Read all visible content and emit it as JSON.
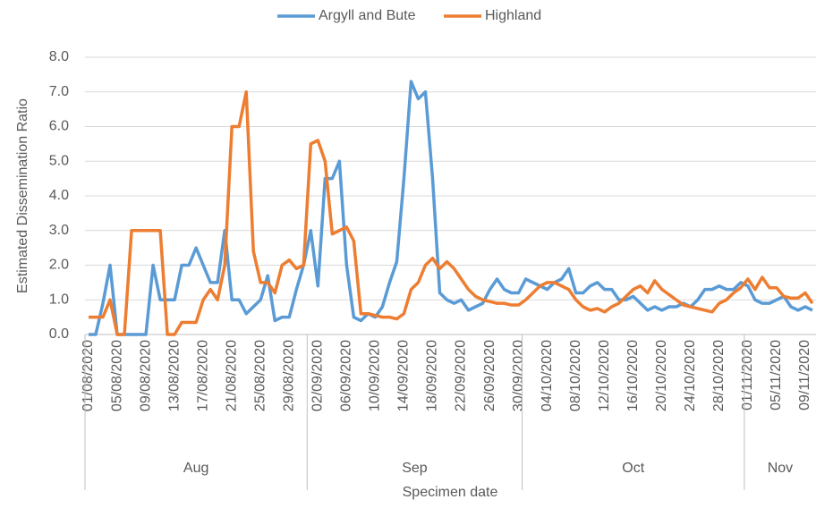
{
  "chart_data": {
    "type": "line",
    "x_label": "Specimen date",
    "y_label": "Estimated Dissemination Ratio",
    "categories": [
      "01/08/2020",
      null,
      null,
      null,
      "05/08/2020",
      null,
      null,
      null,
      "09/08/2020",
      null,
      null,
      null,
      "13/08/2020",
      null,
      null,
      null,
      "17/08/2020",
      null,
      null,
      null,
      "21/08/2020",
      null,
      null,
      null,
      "25/08/2020",
      null,
      null,
      null,
      "29/08/2020",
      null,
      null,
      null,
      "02/09/2020",
      null,
      null,
      null,
      "06/09/2020",
      null,
      null,
      null,
      "10/09/2020",
      null,
      null,
      null,
      "14/09/2020",
      null,
      null,
      null,
      "18/09/2020",
      null,
      null,
      null,
      "22/09/2020",
      null,
      null,
      null,
      "26/09/2020",
      null,
      null,
      null,
      "30/09/2020",
      null,
      null,
      null,
      "04/10/2020",
      null,
      null,
      null,
      "08/10/2020",
      null,
      null,
      null,
      "12/10/2020",
      null,
      null,
      null,
      "16/10/2020",
      null,
      null,
      null,
      "20/10/2020",
      null,
      null,
      null,
      "24/10/2020",
      null,
      null,
      null,
      "28/10/2020",
      null,
      null,
      null,
      "01/11/2020",
      null,
      null,
      null,
      "05/11/2020",
      null,
      null,
      null,
      "09/11/2020",
      null
    ],
    "month_groups": [
      {
        "label": "Aug",
        "span": 31
      },
      {
        "label": "Sep",
        "span": 30
      },
      {
        "label": "Oct",
        "span": 31
      },
      {
        "label": "Nov",
        "span": 10
      }
    ],
    "series": [
      {
        "name": "Argyll and Bute",
        "color": "#5b9bd5",
        "values": [
          0,
          0,
          0.9,
          2.0,
          0,
          0,
          0,
          0,
          0,
          2.0,
          1.0,
          1.0,
          1.0,
          2.0,
          2.0,
          2.5,
          2.0,
          1.5,
          1.5,
          3.0,
          1.0,
          1.0,
          0.6,
          0.8,
          1.0,
          1.7,
          0.4,
          0.5,
          0.5,
          1.3,
          2.0,
          3.0,
          1.4,
          4.5,
          4.5,
          5.0,
          2.0,
          0.5,
          0.4,
          0.6,
          0.5,
          0.8,
          1.5,
          2.1,
          4.5,
          7.3,
          6.8,
          7.0,
          4.5,
          1.2,
          1.0,
          0.9,
          1.0,
          0.7,
          0.8,
          0.9,
          1.3,
          1.6,
          1.3,
          1.2,
          1.2,
          1.6,
          1.5,
          1.4,
          1.3,
          1.5,
          1.6,
          1.9,
          1.2,
          1.2,
          1.4,
          1.5,
          1.3,
          1.3,
          1.0,
          1.0,
          1.1,
          0.9,
          0.7,
          0.8,
          0.7,
          0.8,
          0.8,
          0.9,
          0.8,
          1.0,
          1.3,
          1.3,
          1.4,
          1.3,
          1.3,
          1.5,
          1.4,
          1.0,
          0.9,
          0.9,
          1.0,
          1.1,
          0.8,
          0.7,
          0.8,
          0.7
        ]
      },
      {
        "name": "Highland",
        "color": "#ed7d31",
        "values": [
          0.5,
          0.5,
          0.5,
          1.0,
          0,
          0,
          3.0,
          3.0,
          3.0,
          3.0,
          3.0,
          0,
          0,
          0.35,
          0.35,
          0.35,
          1.0,
          1.3,
          1.0,
          2.0,
          6.0,
          6.0,
          7.0,
          2.4,
          1.5,
          1.5,
          1.2,
          2.0,
          2.15,
          1.9,
          2.0,
          5.5,
          5.6,
          5.0,
          2.9,
          3.0,
          3.1,
          2.7,
          0.6,
          0.6,
          0.55,
          0.5,
          0.5,
          0.45,
          0.6,
          1.3,
          1.5,
          2.0,
          2.2,
          1.9,
          2.1,
          1.9,
          1.6,
          1.3,
          1.1,
          1.0,
          0.95,
          0.9,
          0.9,
          0.85,
          0.85,
          1.0,
          1.2,
          1.4,
          1.5,
          1.5,
          1.4,
          1.3,
          1.0,
          0.8,
          0.7,
          0.75,
          0.65,
          0.8,
          0.9,
          1.1,
          1.3,
          1.4,
          1.2,
          1.55,
          1.3,
          1.15,
          1.0,
          0.85,
          0.8,
          0.75,
          0.7,
          0.65,
          0.9,
          1.0,
          1.2,
          1.35,
          1.6,
          1.3,
          1.65,
          1.35,
          1.35,
          1.1,
          1.05,
          1.05,
          1.2,
          0.9
        ]
      }
    ],
    "ylim": [
      0,
      8
    ],
    "yticks": [
      {
        "value": 0,
        "label": "0.0"
      },
      {
        "value": 1,
        "label": "1.0"
      },
      {
        "value": 2,
        "label": "2.0"
      },
      {
        "value": 3,
        "label": "3.0"
      },
      {
        "value": 4,
        "label": "4.0"
      },
      {
        "value": 5,
        "label": "5.0"
      },
      {
        "value": 6,
        "label": "6.0"
      },
      {
        "value": 7,
        "label": "7.0"
      },
      {
        "value": 8,
        "label": "8.0"
      }
    ],
    "grid": true,
    "legend": "top"
  }
}
